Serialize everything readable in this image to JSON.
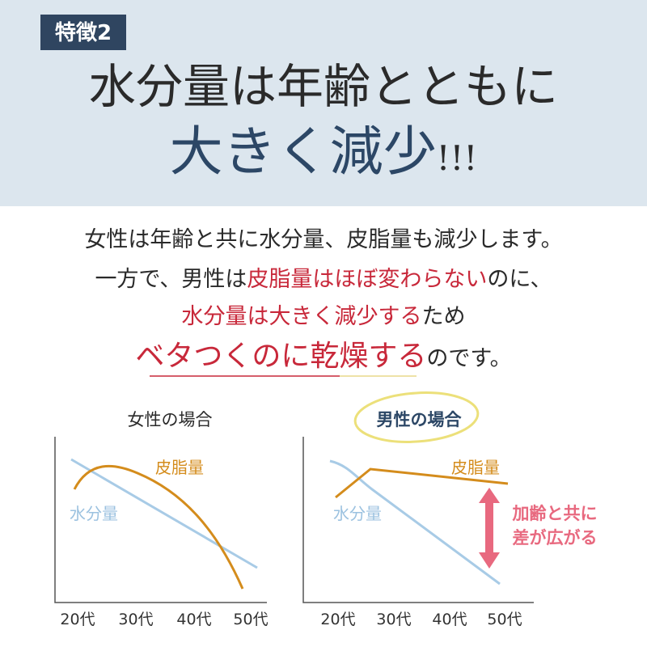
{
  "header": {
    "badge": "特徴2",
    "title_line1": "水分量は年齢とともに",
    "title_line2": "大きく減少",
    "exclaim": "!!!"
  },
  "body": {
    "lines": [
      [
        "女性は年齢と共に水分量、皮脂量も減少します。"
      ],
      [
        "一方で、男性は",
        "皮脂量はほぼ変わらない",
        "のに、"
      ],
      [
        "水分量は大きく減少する",
        "ため"
      ],
      [
        "ベタつくのに乾燥する",
        "のです。"
      ]
    ]
  },
  "charts": [
    {
      "title": "女性の場合",
      "sebum_label": "皮脂量",
      "water_label": "水分量",
      "x_labels": [
        "20代",
        "30代",
        "40代",
        "50代"
      ]
    },
    {
      "title": "男性の場合",
      "sebum_label": "皮脂量",
      "water_label": "水分量",
      "x_labels": [
        "20代",
        "30代",
        "40代",
        "50代"
      ],
      "annotation": [
        "加齢と共に",
        "差が広がる"
      ]
    }
  ]
}
